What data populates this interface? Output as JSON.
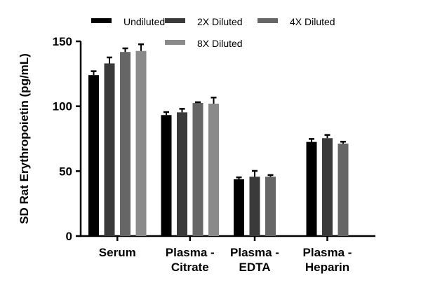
{
  "chart_data": {
    "type": "bar",
    "title": "",
    "xlabel": "",
    "ylabel": "SD Rat Erythropoietin (pg/mL)",
    "ylim": [
      0,
      150
    ],
    "yticks": [
      0,
      50,
      100,
      150
    ],
    "grid": false,
    "legend_position": "top",
    "categories": [
      [
        "Serum"
      ],
      [
        "Plasma -",
        "Citrate"
      ],
      [
        "Plasma -",
        "EDTA"
      ],
      [
        "Plasma -",
        "Heparin"
      ]
    ],
    "series": [
      {
        "name": "Undiluted",
        "color": "#000000",
        "values": [
          124,
          93.2,
          43.7,
          72.5
        ],
        "errors": [
          3,
          2.3,
          1.5,
          2.3
        ]
      },
      {
        "name": "2X Diluted",
        "color": "#3a3a3a",
        "values": [
          133,
          95.3,
          45.7,
          75.4
        ],
        "errors": [
          4.6,
          2.7,
          4.5,
          2.5
        ]
      },
      {
        "name": "4X Diluted",
        "color": "#666666",
        "values": [
          141.8,
          102.5,
          45.7,
          71.2
        ],
        "errors": [
          2.8,
          0.6,
          1.3,
          1.5
        ]
      },
      {
        "name": "8X Diluted",
        "color": "#8a8a8a",
        "values": [
          142.6,
          102,
          null,
          null
        ],
        "errors": [
          5.1,
          4.7,
          null,
          null
        ]
      }
    ]
  }
}
